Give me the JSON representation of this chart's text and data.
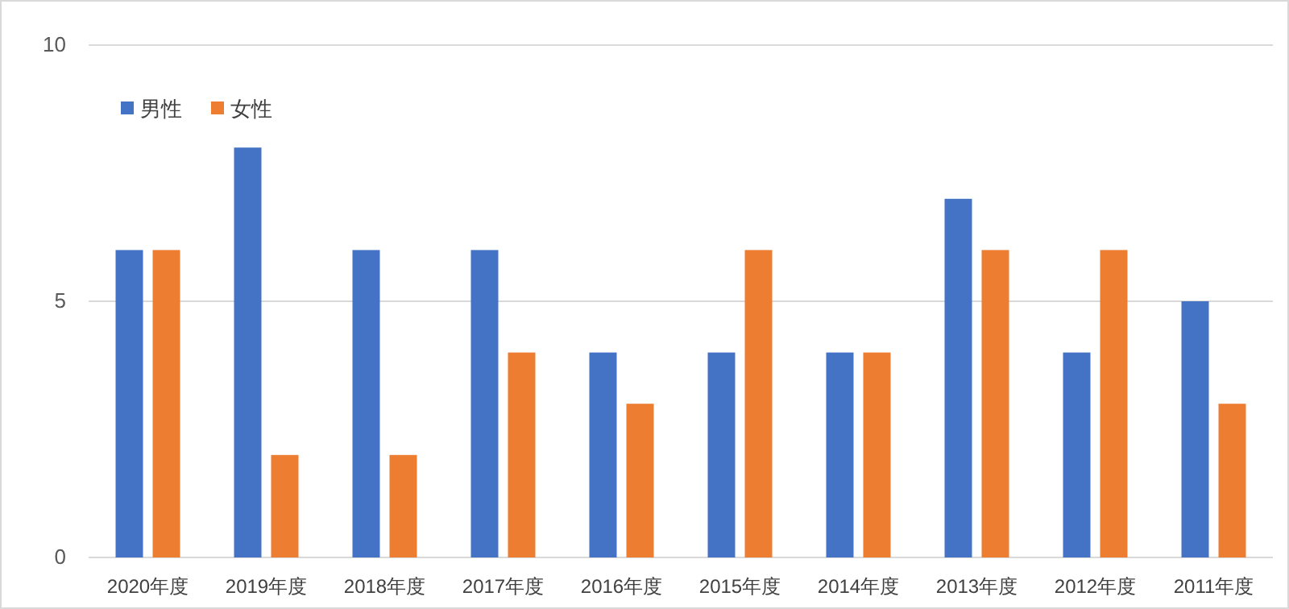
{
  "chart_data": {
    "type": "bar",
    "categories": [
      "2020年度",
      "2019年度",
      "2018年度",
      "2017年度",
      "2016年度",
      "2015年度",
      "2014年度",
      "2013年度",
      "2012年度",
      "2011年度"
    ],
    "series": [
      {
        "name": "男性",
        "color": "#4472c4",
        "values": [
          6,
          8,
          6,
          6,
          4,
          4,
          4,
          7,
          4,
          5
        ]
      },
      {
        "name": "女性",
        "color": "#ed7d31",
        "values": [
          6,
          2,
          2,
          4,
          3,
          6,
          4,
          6,
          6,
          3
        ]
      }
    ],
    "ylim": [
      0,
      10
    ],
    "yticks": [
      0,
      5,
      10
    ],
    "grid": "y",
    "legend": "top left"
  }
}
